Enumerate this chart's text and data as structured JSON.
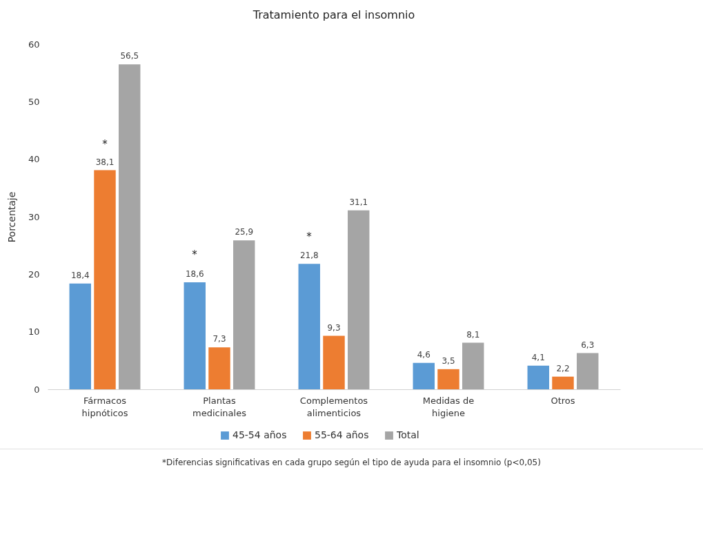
{
  "chart_data": {
    "type": "bar",
    "title": "Tratamiento para el insomnio",
    "ylabel": "Porcentaje",
    "categories": [
      "Fármacos hipnóticos",
      "Plantas medicinales",
      "Complementos alimenticios",
      "Medidas de higiene",
      "Otros"
    ],
    "series": [
      {
        "name": "45-54 años",
        "color": "#5b9bd5",
        "values": [
          18.4,
          18.6,
          21.8,
          4.6,
          4.1
        ],
        "value_labels": [
          "18,4",
          "18,6",
          "21,8",
          "4,6",
          "4,1"
        ]
      },
      {
        "name": "55-64 años",
        "color": "#ed7d31",
        "values": [
          38.1,
          7.3,
          9.3,
          3.5,
          2.2
        ],
        "value_labels": [
          "38,1",
          "7,3",
          "9,3",
          "3,5",
          "2,2"
        ]
      },
      {
        "name": "Total",
        "color": "#a5a5a5",
        "values": [
          56.5,
          25.9,
          31.1,
          8.1,
          6.3
        ],
        "value_labels": [
          "56,5",
          "25,9",
          "31,1",
          "8,1",
          "6,3"
        ]
      }
    ],
    "ylim": [
      0,
      60
    ],
    "yticks": [
      0,
      10,
      20,
      30,
      40,
      50,
      60
    ],
    "grid": false,
    "legend": "bottom",
    "annotations": [
      "*",
      "*",
      "*",
      "*Diferencias significativas en cada grupo según el tipo de ayuda para el insomnio (p<0,05)"
    ]
  }
}
